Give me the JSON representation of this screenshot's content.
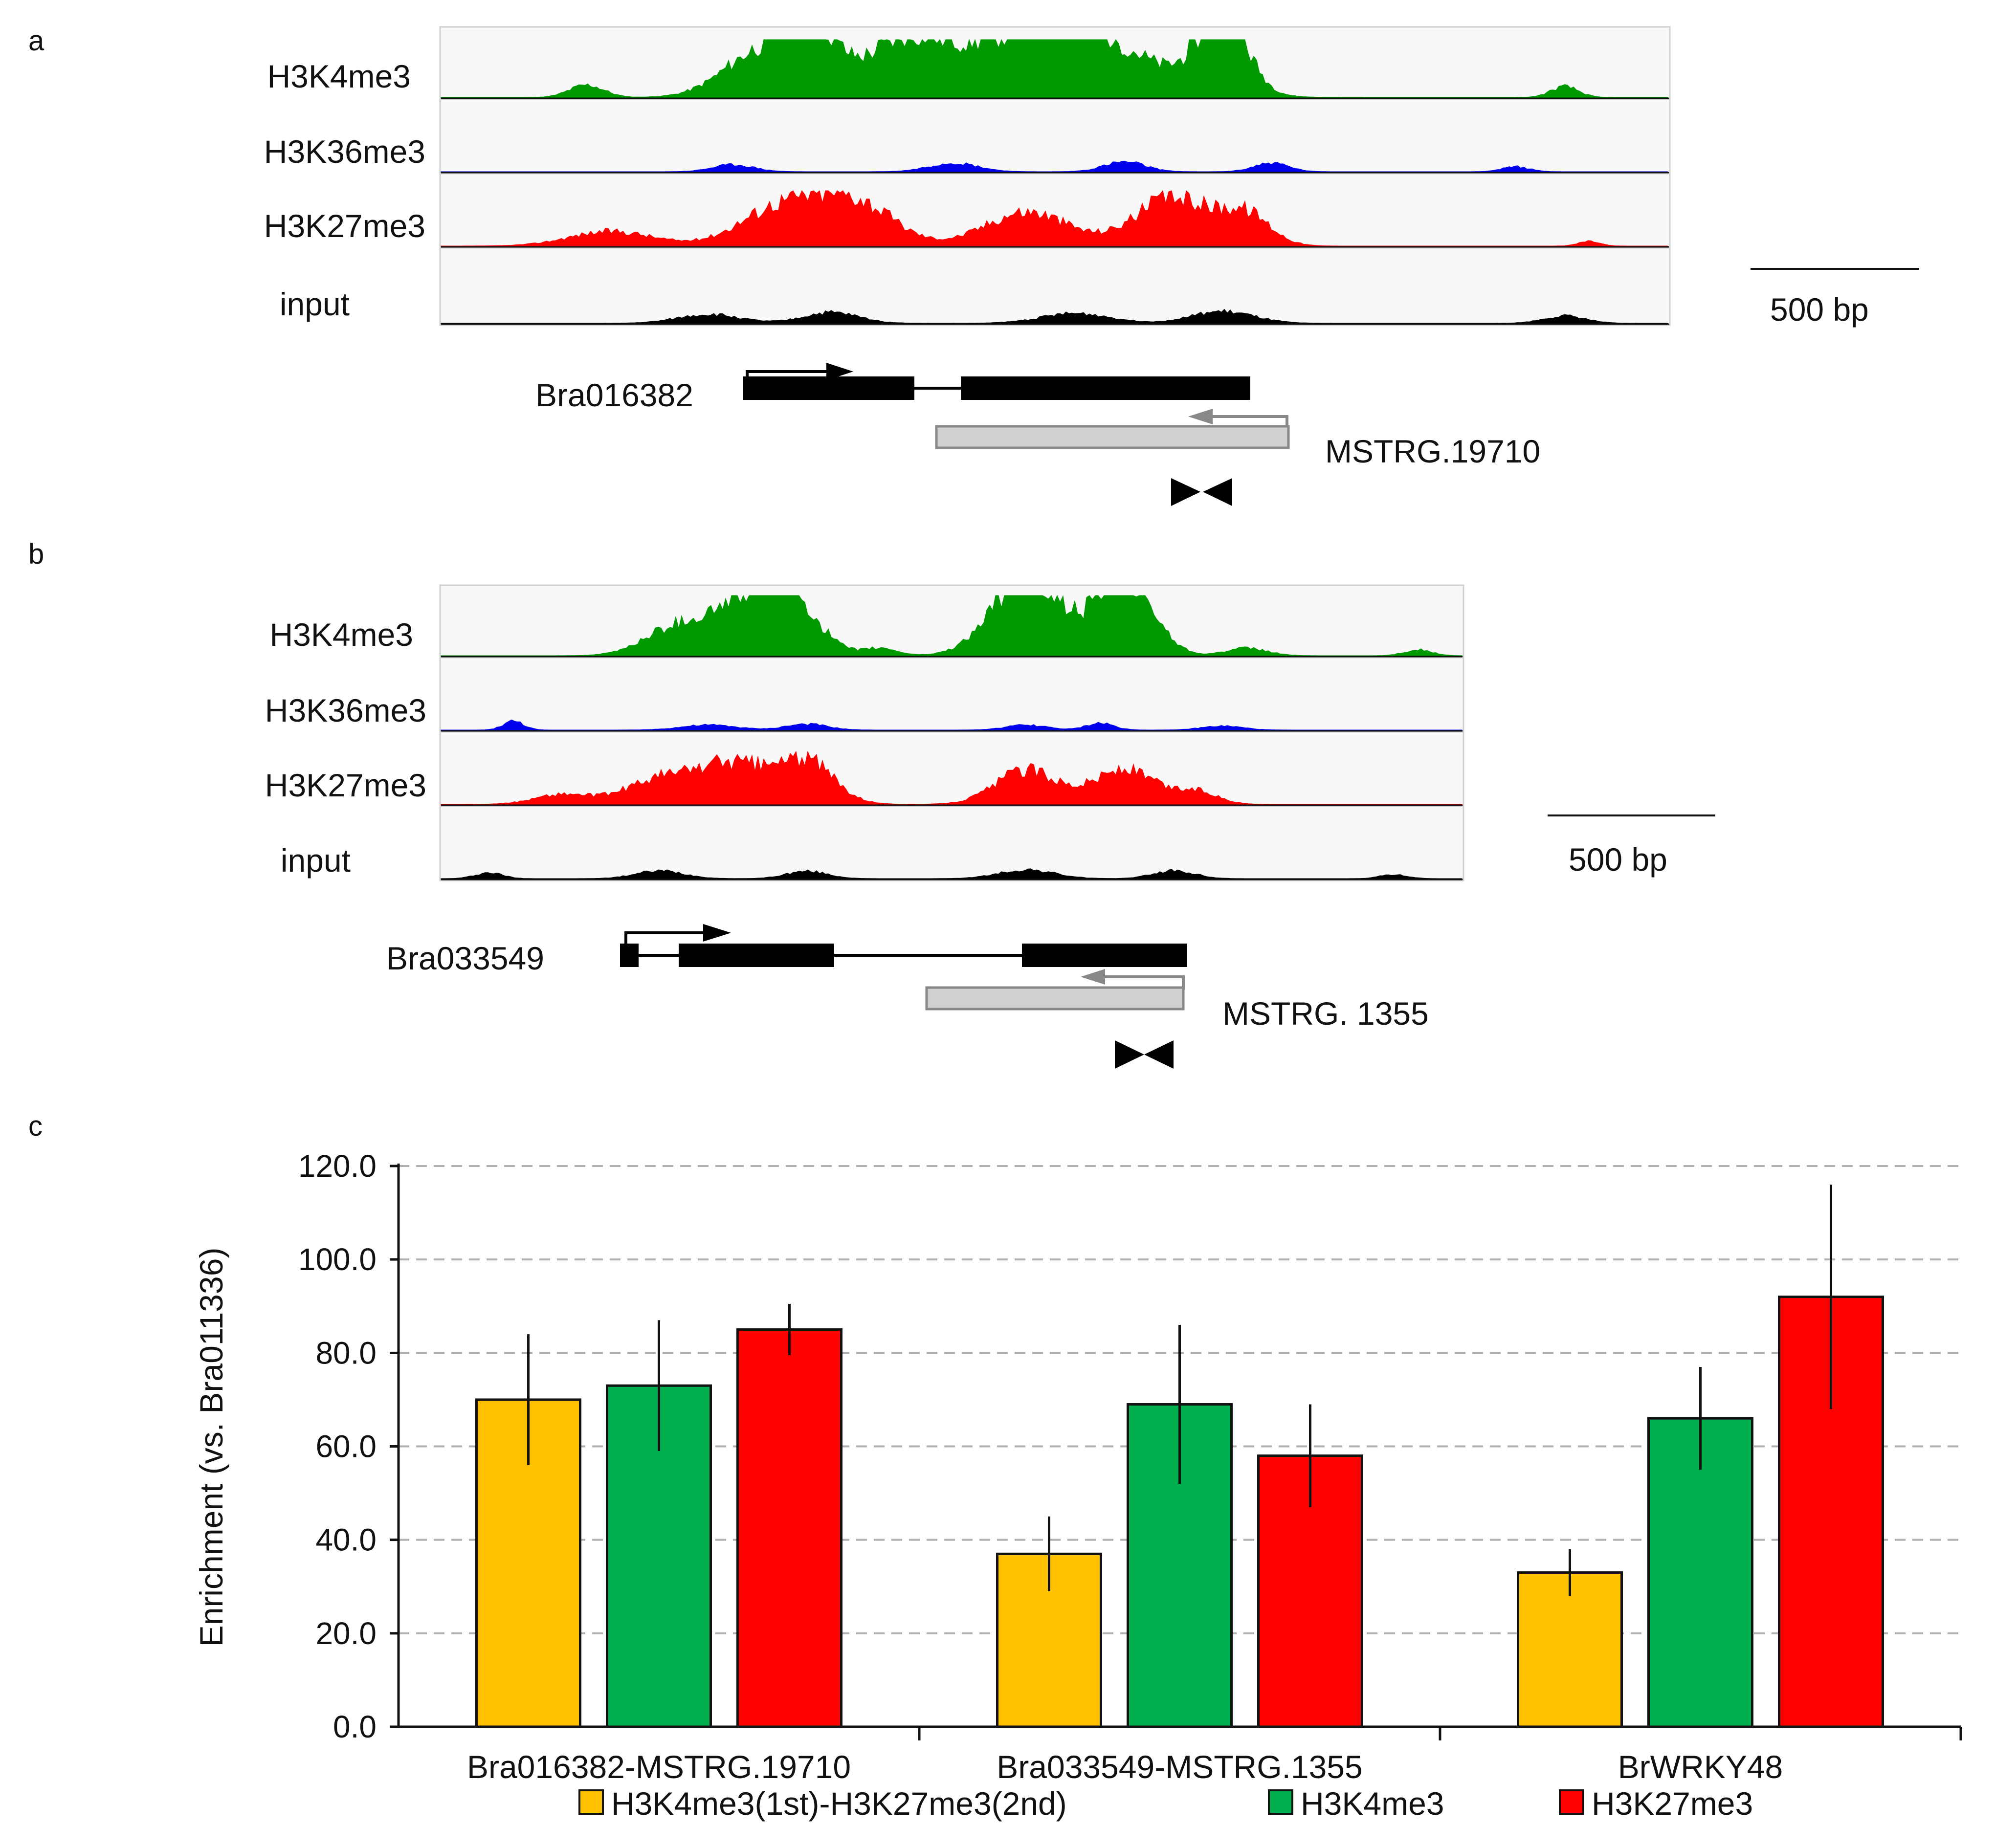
{
  "figure": {
    "panel_a": {
      "letter": "a",
      "tracks": [
        {
          "label": "H3K4me3",
          "color": "#009900"
        },
        {
          "label": "H3K36me3",
          "color": "#0000ee"
        },
        {
          "label": "H3K27me3",
          "color": "#ff0000"
        },
        {
          "label": "input",
          "color": "#000000"
        }
      ],
      "scale": "500 bp",
      "gene": "Bra016382",
      "transcript": "MSTRG.19710"
    },
    "panel_b": {
      "letter": "b",
      "tracks": [
        {
          "label": "H3K4me3",
          "color": "#009900"
        },
        {
          "label": "H3K36me3",
          "color": "#0000ee"
        },
        {
          "label": "H3K27me3",
          "color": "#ff0000"
        },
        {
          "label": "input",
          "color": "#000000"
        }
      ],
      "scale": "500 bp",
      "gene": "Bra033549",
      "transcript": "MSTRG. 1355"
    },
    "panel_c": {
      "letter": "c"
    }
  },
  "chart_data": {
    "type": "bar",
    "title": "",
    "xlabel": "",
    "ylabel": "Enrichment (vs. Bra011336)",
    "ylim": [
      0,
      120
    ],
    "yticks": [
      0,
      20,
      40,
      60,
      80,
      100,
      120
    ],
    "ytick_labels": [
      "0.0",
      "20.0",
      "40.0",
      "60.0",
      "80.0",
      "100.0",
      "120.0"
    ],
    "grid": true,
    "categories": [
      "Bra016382-MSTRG.19710",
      "Bra033549-MSTRG.1355",
      "BrWRKY48"
    ],
    "series": [
      {
        "name": "H3K4me3(1st)-H3K27me3(2nd)",
        "color": "#ffc000",
        "values": [
          70,
          37,
          33
        ],
        "errors": [
          14,
          8,
          5
        ]
      },
      {
        "name": "H3K4me3",
        "color": "#00b050",
        "values": [
          73,
          69,
          66
        ],
        "errors": [
          14,
          17,
          11
        ]
      },
      {
        "name": "H3K27me3",
        "color": "#ff0000",
        "values": [
          85,
          58,
          92
        ],
        "errors": [
          5.5,
          11,
          24
        ]
      }
    ],
    "legend_position": "bottom"
  }
}
